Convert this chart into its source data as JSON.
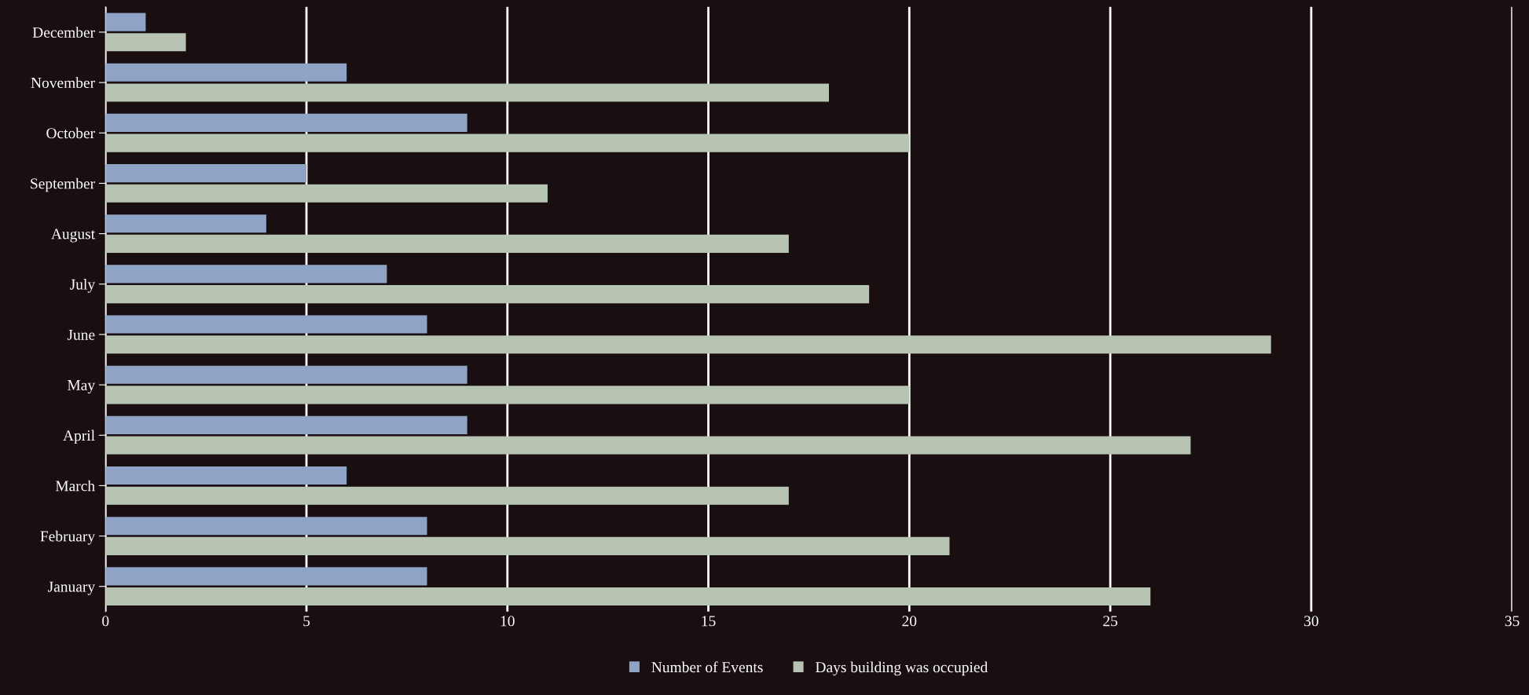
{
  "chart_data": {
    "type": "bar",
    "orientation": "horizontal",
    "categories": [
      "December",
      "November",
      "October",
      "September",
      "August",
      "July",
      "June",
      "May",
      "April",
      "March",
      "February",
      "January"
    ],
    "series": [
      {
        "name": "Number of Events",
        "color": "#8fa3c6",
        "values": [
          1,
          6,
          9,
          5,
          4,
          7,
          8,
          9,
          9,
          6,
          8,
          8
        ]
      },
      {
        "name": "Days building was occupied",
        "color": "#b7c4b3",
        "values": [
          2,
          18,
          20,
          11,
          17,
          19,
          29,
          20,
          27,
          17,
          21,
          26
        ]
      }
    ],
    "xlim": [
      0,
      35
    ],
    "xticks": [
      0,
      5,
      10,
      15,
      20,
      25,
      30,
      35
    ],
    "grid": "x",
    "legend": "bottom"
  }
}
